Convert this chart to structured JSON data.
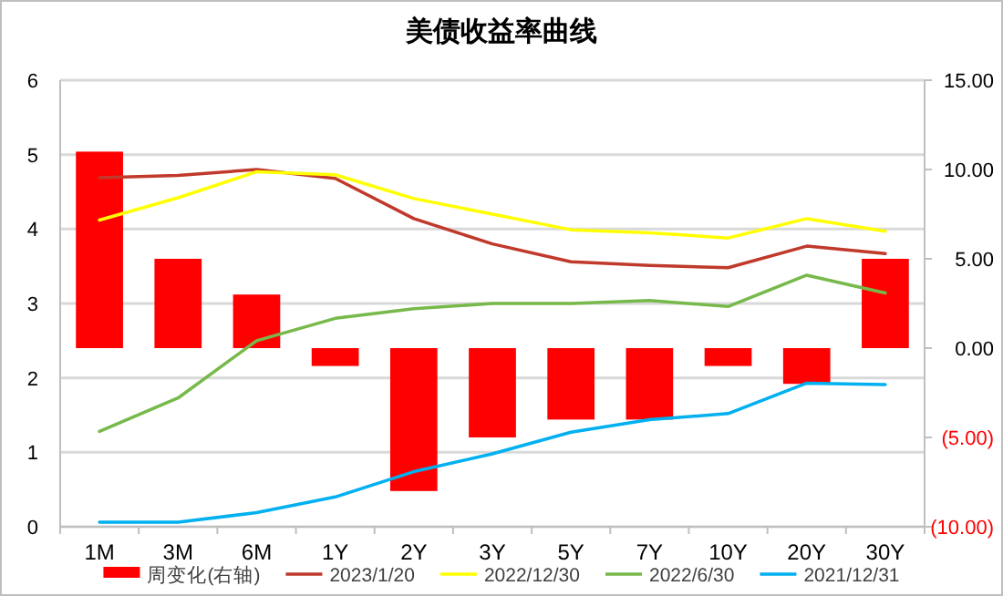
{
  "chart_data": {
    "type": "line",
    "title": "美债收益率曲线",
    "categories": [
      "1M",
      "3M",
      "6M",
      "1Y",
      "2Y",
      "3Y",
      "5Y",
      "7Y",
      "10Y",
      "20Y",
      "30Y"
    ],
    "series": [
      {
        "name": "周变化(右轴)",
        "type": "bar",
        "axis": "y2",
        "color": "#ff0000",
        "values": [
          11.0,
          5.0,
          3.0,
          -1.0,
          -8.0,
          -5.0,
          -4.0,
          -4.0,
          -1.0,
          -2.0,
          5.0
        ]
      },
      {
        "name": "2023/1/20",
        "color": "#c0392b",
        "values": [
          4.69,
          4.72,
          4.8,
          4.68,
          4.14,
          3.8,
          3.56,
          3.51,
          3.48,
          3.77,
          3.67
        ]
      },
      {
        "name": "2022/12/30",
        "color": "#ffff00",
        "values": [
          4.12,
          4.42,
          4.77,
          4.73,
          4.41,
          4.2,
          3.99,
          3.95,
          3.88,
          4.14,
          3.97
        ]
      },
      {
        "name": "2022/6/30",
        "color": "#77b94a",
        "values": [
          1.28,
          1.73,
          2.5,
          2.8,
          2.93,
          3.0,
          3.0,
          3.04,
          2.96,
          3.38,
          3.14
        ]
      },
      {
        "name": "2021/12/31",
        "color": "#00b0f0",
        "values": [
          0.06,
          0.06,
          0.19,
          0.4,
          0.74,
          0.98,
          1.27,
          1.44,
          1.52,
          1.93,
          1.91
        ]
      }
    ],
    "ylim": [
      0,
      6
    ],
    "yticks": [
      0,
      1,
      2,
      3,
      4,
      5,
      6
    ],
    "y2lim": [
      -10,
      15
    ],
    "y2ticks": [
      {
        "value": 15,
        "label": "15.00"
      },
      {
        "value": 10,
        "label": "10.00"
      },
      {
        "value": 5,
        "label": "5.00"
      },
      {
        "value": 0,
        "label": "0.00"
      },
      {
        "value": -5,
        "label": "(5.00)"
      },
      {
        "value": -10,
        "label": "(10.00)"
      }
    ],
    "grid": "y",
    "legend": "bottom",
    "marker": "none",
    "line_style": "solid"
  }
}
